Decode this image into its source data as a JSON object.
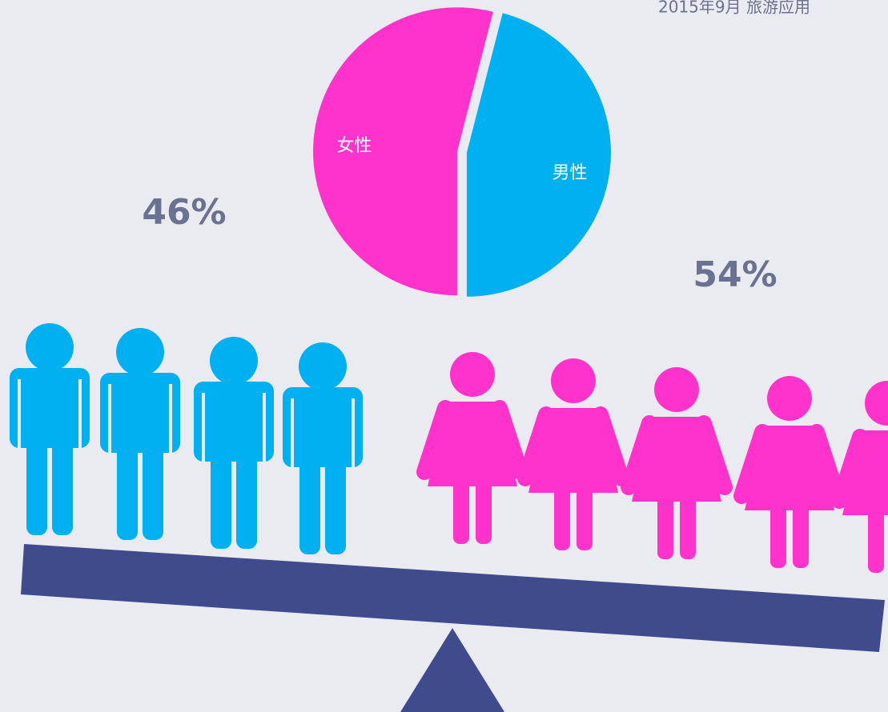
{
  "chart_data": {
    "type": "pie",
    "title": "2015年9月 旅游应用",
    "categories": [
      "男性",
      "女性"
    ],
    "values": [
      46,
      54
    ],
    "value_labels": [
      "46%",
      "54%"
    ],
    "colors": [
      "#00b0f0",
      "#ff33cc"
    ]
  }
}
